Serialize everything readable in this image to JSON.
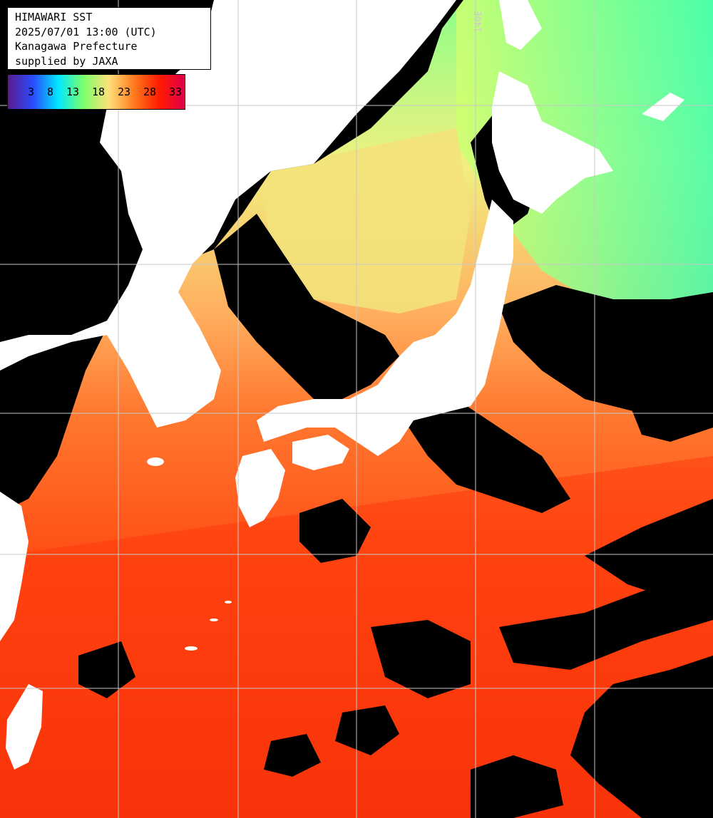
{
  "title_box": {
    "line1": "HIMAWARI SST",
    "line2": "2025/07/01 13:00 (UTC)",
    "line3": "Kanagawa Prefecture",
    "line4": "supplied by JAXA"
  },
  "legend": {
    "ticks": [
      "3",
      "8",
      "13",
      "18",
      "23",
      "28",
      "33"
    ],
    "colors": [
      "#5a1a8c",
      "#2a4cff",
      "#00e8ff",
      "#7cff6a",
      "#ffe07a",
      "#ff7a1e",
      "#ff1a00",
      "#e0004a"
    ]
  },
  "grid": {
    "lon_label": "140E"
  },
  "colors": {
    "land": "#ffffff",
    "cloud": "#000000",
    "warm_sea": "#ff4a10",
    "mid_sea": "#ff8a3a",
    "cool_sea": "#f4e070",
    "cold_sea": "#90ff80",
    "grid_line": "#c8c8c8"
  },
  "icons": {
    "legend": "color-scale-bar"
  }
}
